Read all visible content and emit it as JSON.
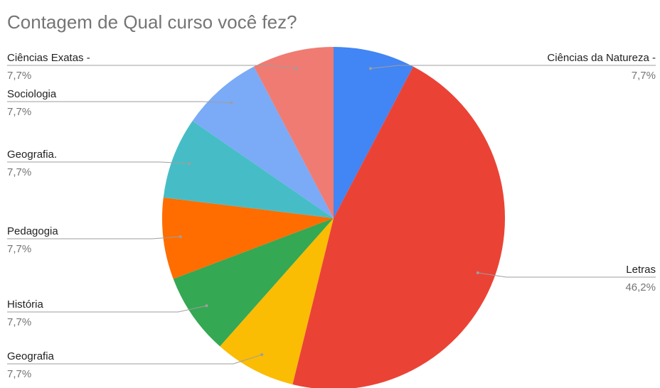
{
  "chart_data": {
    "type": "pie",
    "title": "Contagem de Qual curso você fez?",
    "categories": [
      "Ciências da Natureza -",
      "Letras",
      "Geografia",
      "História",
      "Pedagogia",
      "Geografia.",
      "Sociologia",
      "Ciências Exatas -"
    ],
    "values": [
      7.7,
      46.2,
      7.7,
      7.7,
      7.7,
      7.7,
      7.7,
      7.7
    ],
    "value_labels": [
      "7,7%",
      "46,2%",
      "7,7%",
      "7,7%",
      "7,7%",
      "7,7%",
      "7,7%",
      "7,7%"
    ],
    "colors": [
      "#4285f4",
      "#ea4335",
      "#fbbc04",
      "#34a853",
      "#ff6d01",
      "#46bdc6",
      "#7baaf7",
      "#f07b72"
    ]
  }
}
